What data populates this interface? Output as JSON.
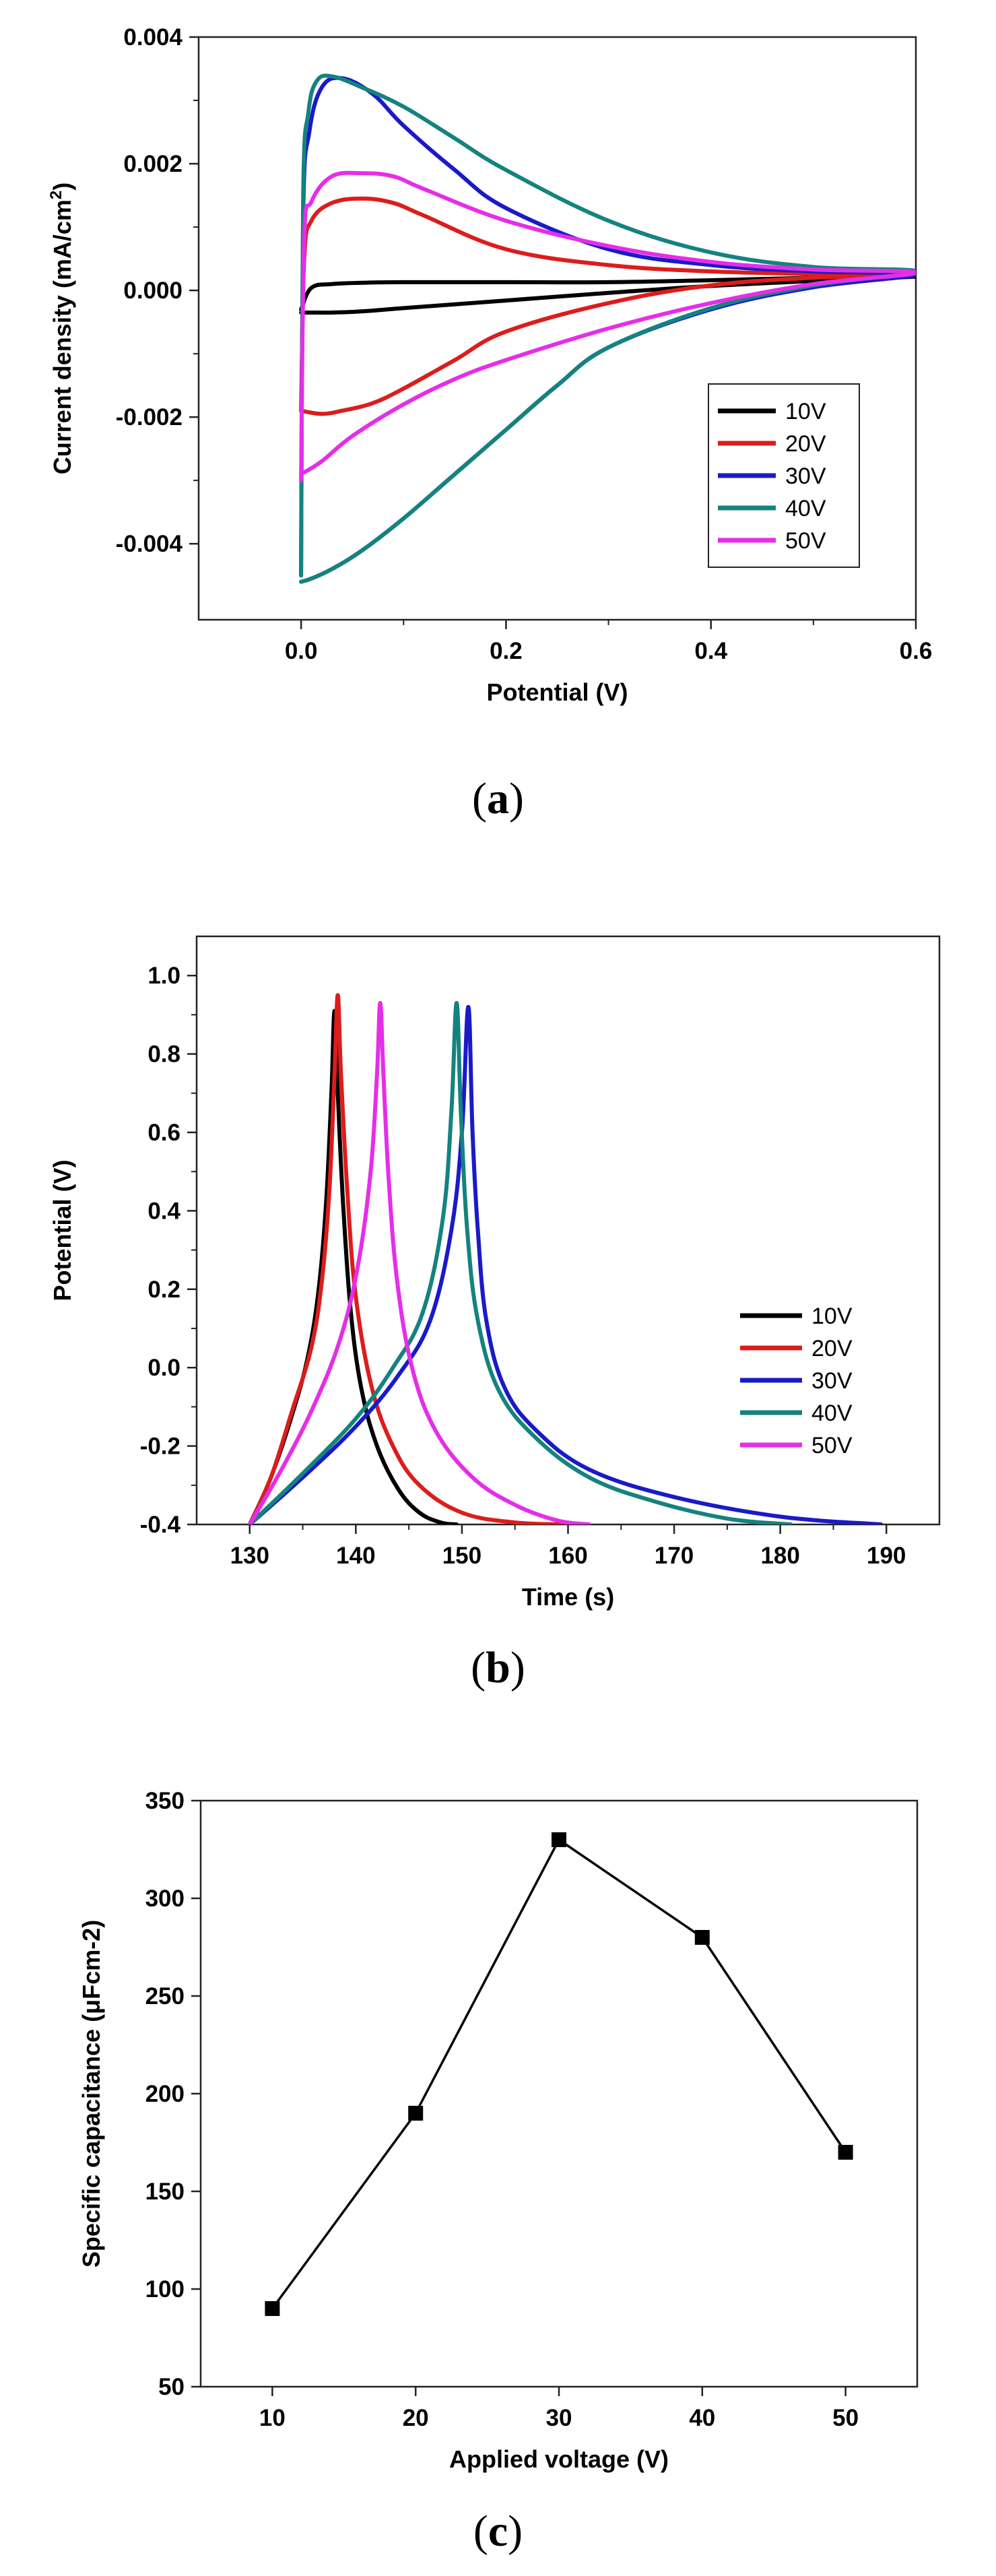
{
  "chart_data": [
    {
      "type": "line",
      "subtype": "cyclic voltammetry",
      "title": "",
      "xlabel": "Potential (V)",
      "ylabel": "Current density (mA/cm",
      "ylabel_sup": "2",
      "ylabel_end": ")",
      "xlim": [
        -0.1,
        0.6
      ],
      "ylim": [
        -0.0052,
        0.004
      ],
      "xticks": [
        0.0,
        0.2,
        0.4,
        0.6
      ],
      "xtick_labels": [
        "0.0",
        "0.2",
        "0.4",
        "0.6"
      ],
      "yticks": [
        0.004,
        0.002,
        0.0,
        -0.002,
        -0.004
      ],
      "ytick_labels": [
        "0.004",
        "0.002",
        "0.000",
        "-0.002",
        "-0.004"
      ],
      "legend_position": "lower-right",
      "series": [
        {
          "name": "10V",
          "color": "#000000",
          "x": [
            0.0,
            0.01,
            0.03,
            0.06,
            0.1,
            0.2,
            0.3,
            0.4,
            0.5,
            0.6,
            0.5,
            0.4,
            0.3,
            0.2,
            0.1,
            0.06,
            0.03,
            0.01,
            0.0
          ],
          "y": [
            -0.0003,
            4e-05,
            0.0001,
            0.00012,
            0.00013,
            0.00013,
            0.00013,
            0.00016,
            0.0002,
            0.00022,
            0.00015,
            7e-05,
            -4e-05,
            -0.00016,
            -0.00028,
            -0.00033,
            -0.00035,
            -0.00035,
            -0.00035
          ]
        },
        {
          "name": "20V",
          "color": "#dd1c1c",
          "x": [
            0.0,
            0.003,
            0.01,
            0.03,
            0.06,
            0.09,
            0.12,
            0.2,
            0.3,
            0.4,
            0.5,
            0.6,
            0.5,
            0.4,
            0.3,
            0.2,
            0.15,
            0.1,
            0.07,
            0.04,
            0.02,
            0.0
          ],
          "y": [
            -0.0019,
            0.0005,
            0.0011,
            0.00138,
            0.00145,
            0.00138,
            0.00118,
            0.00065,
            0.0004,
            0.0003,
            0.00026,
            0.00025,
            0.0002,
            8e-05,
            -0.0002,
            -0.00065,
            -0.0011,
            -0.00155,
            -0.00178,
            -0.0019,
            -0.00195,
            -0.0019
          ]
        },
        {
          "name": "30V",
          "color": "#1a1ac8",
          "x": [
            0.0,
            0.002,
            0.008,
            0.02,
            0.04,
            0.07,
            0.1,
            0.15,
            0.2,
            0.3,
            0.4,
            0.5,
            0.6,
            0.5,
            0.4,
            0.3,
            0.25,
            0.2,
            0.15,
            0.1,
            0.06,
            0.03,
            0.01,
            0.0
          ],
          "y": [
            -0.0045,
            0.0012,
            0.0025,
            0.0032,
            0.00335,
            0.0031,
            0.0026,
            0.0019,
            0.0013,
            0.00065,
            0.0004,
            0.0003,
            0.00025,
            5e-05,
            -0.0003,
            -0.0009,
            -0.0015,
            -0.0022,
            -0.0029,
            -0.0036,
            -0.0041,
            -0.0044,
            -0.00455,
            -0.0046
          ]
        },
        {
          "name": "40V",
          "color": "#14837f",
          "x": [
            0.0,
            0.002,
            0.007,
            0.015,
            0.03,
            0.06,
            0.1,
            0.15,
            0.2,
            0.3,
            0.4,
            0.5,
            0.6,
            0.5,
            0.4,
            0.3,
            0.25,
            0.2,
            0.15,
            0.1,
            0.06,
            0.03,
            0.01,
            0.0
          ],
          "y": [
            -0.0045,
            0.0015,
            0.0028,
            0.0033,
            0.00338,
            0.0032,
            0.0029,
            0.0024,
            0.0019,
            0.0011,
            0.0006,
            0.00037,
            0.0003,
            8e-05,
            -0.00028,
            -0.0009,
            -0.0015,
            -0.0022,
            -0.0029,
            -0.0036,
            -0.0041,
            -0.0044,
            -0.00455,
            -0.0046
          ]
        },
        {
          "name": "50V",
          "color": "#e52ee8",
          "x": [
            0.0,
            0.003,
            0.01,
            0.03,
            0.06,
            0.09,
            0.12,
            0.2,
            0.3,
            0.4,
            0.5,
            0.6,
            0.5,
            0.4,
            0.3,
            0.2,
            0.15,
            0.1,
            0.05,
            0.02,
            0.0
          ],
          "y": [
            -0.003,
            0.0008,
            0.0014,
            0.0018,
            0.00185,
            0.0018,
            0.0016,
            0.0011,
            0.0007,
            0.00045,
            0.00033,
            0.00028,
            0.0001,
            -0.0002,
            -0.0006,
            -0.0011,
            -0.0014,
            -0.0018,
            -0.0023,
            -0.0027,
            -0.0029
          ]
        }
      ],
      "panel_label": "a"
    },
    {
      "type": "line",
      "subtype": "galvanostatic charge-discharge",
      "title": "",
      "xlabel": "Time (s)",
      "ylabel": "Potential (V)",
      "xlim": [
        125,
        195
      ],
      "ylim": [
        -0.4,
        1.1
      ],
      "xticks": [
        130,
        140,
        150,
        160,
        170,
        180,
        190
      ],
      "xtick_labels": [
        "130",
        "140",
        "150",
        "160",
        "170",
        "180",
        "190"
      ],
      "yticks": [
        1.0,
        0.8,
        0.6,
        0.4,
        0.2,
        0.0,
        -0.2,
        -0.4
      ],
      "ytick_labels": [
        "1.0",
        "0.8",
        "0.6",
        "0.4",
        "0.2",
        "0.0",
        "-0.2",
        "-0.4"
      ],
      "legend_position": "middle-right",
      "series": [
        {
          "name": "10V",
          "color": "#000000",
          "x": [
            130,
            132,
            134,
            135.5,
            136.5,
            137.2,
            137.7,
            138.0,
            138.3,
            138.8,
            139.5,
            140.5,
            142,
            144,
            146,
            148,
            149.5
          ],
          "y": [
            -0.4,
            -0.28,
            -0.12,
            0.03,
            0.2,
            0.42,
            0.7,
            0.91,
            0.7,
            0.42,
            0.15,
            -0.05,
            -0.2,
            -0.31,
            -0.37,
            -0.395,
            -0.4
          ]
        },
        {
          "name": "20V",
          "color": "#dd1c1c",
          "x": [
            130,
            132,
            134,
            135.8,
            136.8,
            137.5,
            138.0,
            138.3,
            138.6,
            139.2,
            140,
            141.5,
            143.5,
            146,
            150,
            155,
            160
          ],
          "y": [
            -0.4,
            -0.28,
            -0.11,
            0.05,
            0.22,
            0.45,
            0.75,
            0.95,
            0.75,
            0.45,
            0.18,
            -0.05,
            -0.2,
            -0.3,
            -0.37,
            -0.395,
            -0.4
          ]
        },
        {
          "name": "30V",
          "color": "#1a1ac8",
          "x": [
            130,
            135,
            140,
            144,
            147,
            149,
            150.0,
            150.6,
            151.0,
            151.5,
            152.3,
            154,
            157,
            162,
            170,
            180,
            189.5
          ],
          "y": [
            -0.4,
            -0.28,
            -0.15,
            -0.02,
            0.12,
            0.35,
            0.6,
            0.92,
            0.6,
            0.35,
            0.12,
            -0.05,
            -0.16,
            -0.26,
            -0.33,
            -0.38,
            -0.4
          ]
        },
        {
          "name": "40V",
          "color": "#14837f",
          "x": [
            130,
            135,
            140,
            143.5,
            146.3,
            148.2,
            149.0,
            149.5,
            149.9,
            150.5,
            151.5,
            153.5,
            157,
            162,
            168,
            175,
            181
          ],
          "y": [
            -0.4,
            -0.27,
            -0.13,
            0.0,
            0.14,
            0.38,
            0.65,
            0.93,
            0.65,
            0.35,
            0.12,
            -0.06,
            -0.18,
            -0.28,
            -0.34,
            -0.385,
            -0.4
          ]
        },
        {
          "name": "50V",
          "color": "#e52ee8",
          "x": [
            130,
            133,
            136,
            138.5,
            140.2,
            141.4,
            142.0,
            142.3,
            142.6,
            143.1,
            143.9,
            145.3,
            147.5,
            151,
            155,
            159,
            162
          ],
          "y": [
            -0.4,
            -0.26,
            -0.1,
            0.07,
            0.26,
            0.5,
            0.75,
            0.93,
            0.75,
            0.48,
            0.22,
            0.0,
            -0.16,
            -0.28,
            -0.35,
            -0.39,
            -0.4
          ]
        }
      ],
      "panel_label": "b"
    },
    {
      "type": "line",
      "subtype": "line with square markers",
      "title": "",
      "xlabel": "Applied voltage (V)",
      "ylabel": "Specific capacitance (μFcm-2)",
      "xlim": [
        5,
        55
      ],
      "ylim": [
        50,
        350
      ],
      "xticks": [
        10,
        20,
        30,
        40,
        50
      ],
      "xtick_labels": [
        "10",
        "20",
        "30",
        "40",
        "50"
      ],
      "yticks": [
        350,
        300,
        250,
        200,
        150,
        100,
        50
      ],
      "ytick_labels": [
        "350",
        "300",
        "250",
        "200",
        "150",
        "100",
        "50"
      ],
      "series": [
        {
          "name": "Specific capacitance",
          "color": "#000000",
          "x": [
            10,
            20,
            30,
            40,
            50
          ],
          "y": [
            90,
            190,
            330,
            280,
            170
          ]
        }
      ],
      "panel_label": "c"
    }
  ]
}
